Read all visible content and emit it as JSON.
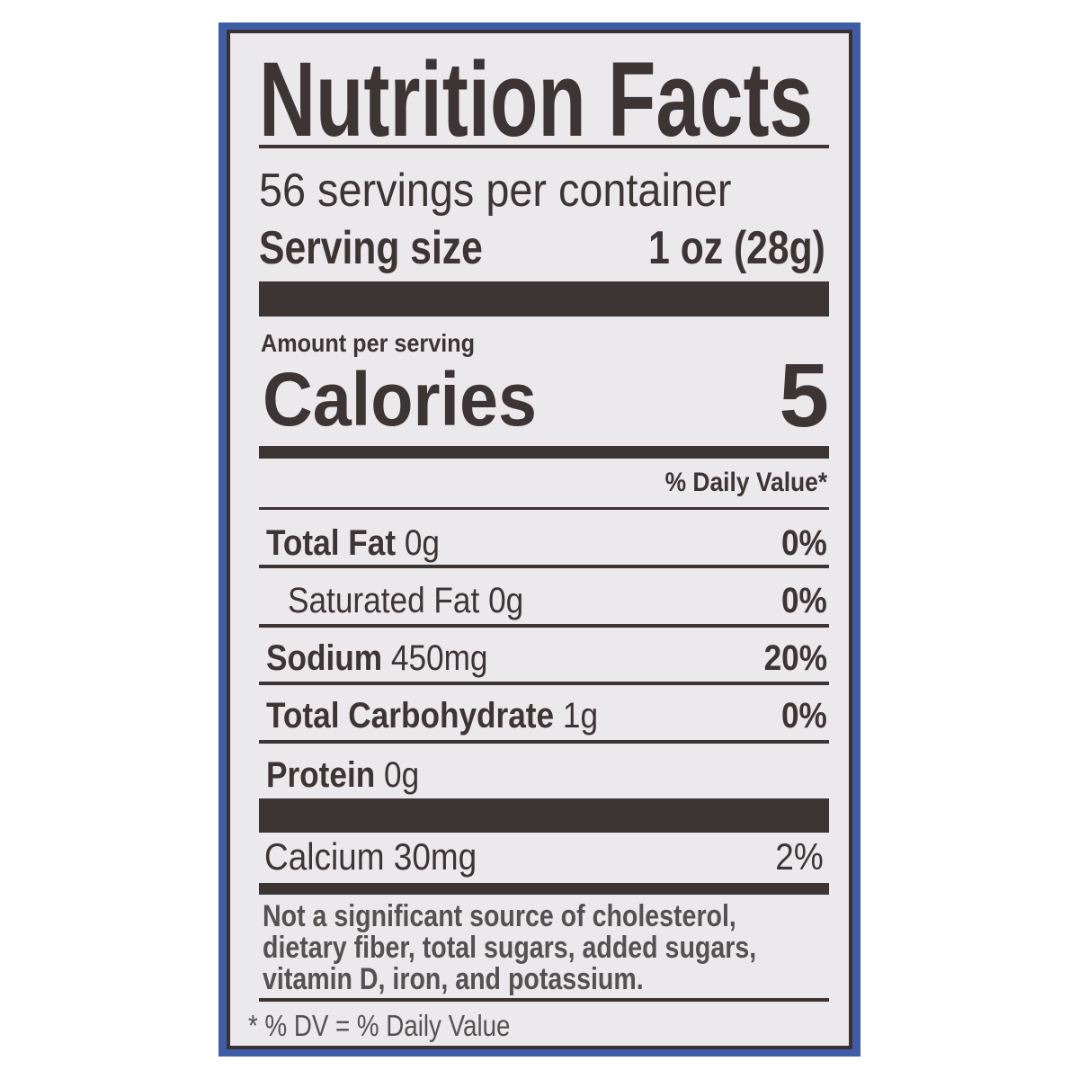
{
  "label": {
    "title": "Nutrition Facts",
    "servings_per_container": "56 servings per container",
    "serving_size_label": "Serving size",
    "serving_size_value": "1 oz (28g)",
    "amount_per_serving": "Amount per serving",
    "calories_label": "Calories",
    "calories_value": "5",
    "daily_value_header": "% Daily Value*",
    "nutrients": [
      {
        "name": "Total Fat",
        "amount": "0g",
        "dv": "0%"
      },
      {
        "name": "Saturated Fat",
        "amount": "0g",
        "dv": "0%"
      },
      {
        "name": "Sodium",
        "amount": "450mg",
        "dv": "20%"
      },
      {
        "name": "Total Carbohydrate",
        "amount": "1g",
        "dv": "0%"
      },
      {
        "name": "Protein",
        "amount": "0g",
        "dv": ""
      }
    ],
    "calcium": {
      "name": "Calcium",
      "amount": "30mg",
      "dv": "2%"
    },
    "footnote_lines": [
      "Not a significant source of cholesterol,",
      "dietary fiber, total sugars, added sugars,",
      "vitamin D, iron, and potassium."
    ],
    "dv_footnote": "* % DV = % Daily Value"
  },
  "colors": {
    "ink": "#3d3434",
    "background": "#ebe9ec",
    "border_blue": "#3f5ca6"
  }
}
